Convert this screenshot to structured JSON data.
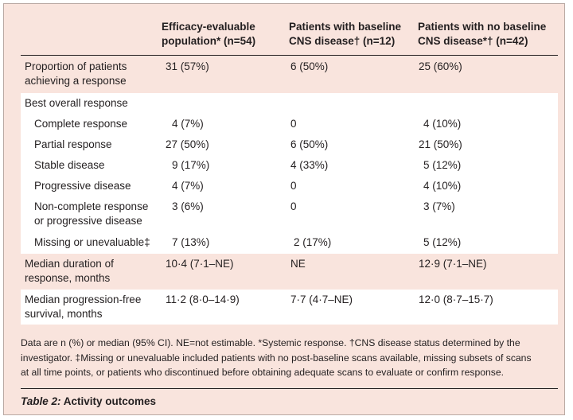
{
  "headers": {
    "col1": [
      "Efficacy-evaluable",
      "population* (n=54)"
    ],
    "col2": [
      "Patients with baseline",
      "CNS disease† (n=12)"
    ],
    "col3": [
      "Patients with no baseline",
      "CNS disease*† (n=42)"
    ]
  },
  "rows": {
    "proportion": {
      "label": [
        "Proportion of patients",
        "achieving a response"
      ],
      "c1": "31 (57%)",
      "c2": "6 (50%)",
      "c3": "25 (60%)"
    },
    "best_overall": {
      "label": "Best overall response"
    },
    "complete": {
      "label": "Complete response",
      "c1": "4 (7%)",
      "c2": "0",
      "c3": "4 (10%)"
    },
    "partial": {
      "label": "Partial response",
      "c1": "27 (50%)",
      "c2": "6 (50%)",
      "c3": "21 (50%)"
    },
    "stable": {
      "label": "Stable disease",
      "c1": "9 (17%)",
      "c2": "4 (33%)",
      "c3": "5 (12%)"
    },
    "progressive": {
      "label": "Progressive disease",
      "c1": "4 (7%)",
      "c2": "0",
      "c3": "4 (10%)"
    },
    "noncomplete": {
      "label": [
        "Non-complete response",
        "or progressive disease"
      ],
      "c1": "3 (6%)",
      "c2": "0",
      "c3": "3 (7%)"
    },
    "missing": {
      "label": "Missing or unevaluable‡",
      "c1": "7 (13%)",
      "c2": "2 (17%)",
      "c3": "5 (12%)"
    },
    "duration": {
      "label": [
        "Median duration of",
        "response, months"
      ],
      "c1": "10·4 (7·1–NE)",
      "c2": "NE",
      "c3": "12·9 (7·1–NE)"
    },
    "pfs": {
      "label": [
        "Median progression-free",
        "survival, months"
      ],
      "c1": "11·2 (8·0–14·9)",
      "c2": "7·7 (4·7–NE)",
      "c3": "12·0 (8·7–15·7)"
    }
  },
  "footnote": [
    "Data are n (%) or median (95% CI). NE=not estimable. *Systemic response. †CNS disease status determined by the",
    "investigator. ‡Missing or unevaluable included patients with no post-baseline scans available, missing subsets of scans",
    "at all time points, or patients who discontinued before obtaining adequate scans to evaluate or confirm response."
  ],
  "caption": {
    "label": "Table 2:",
    "title": " Activity outcomes"
  },
  "colors": {
    "panel": "#f9e4dd",
    "band": "#ffffff",
    "text": "#231f20"
  }
}
